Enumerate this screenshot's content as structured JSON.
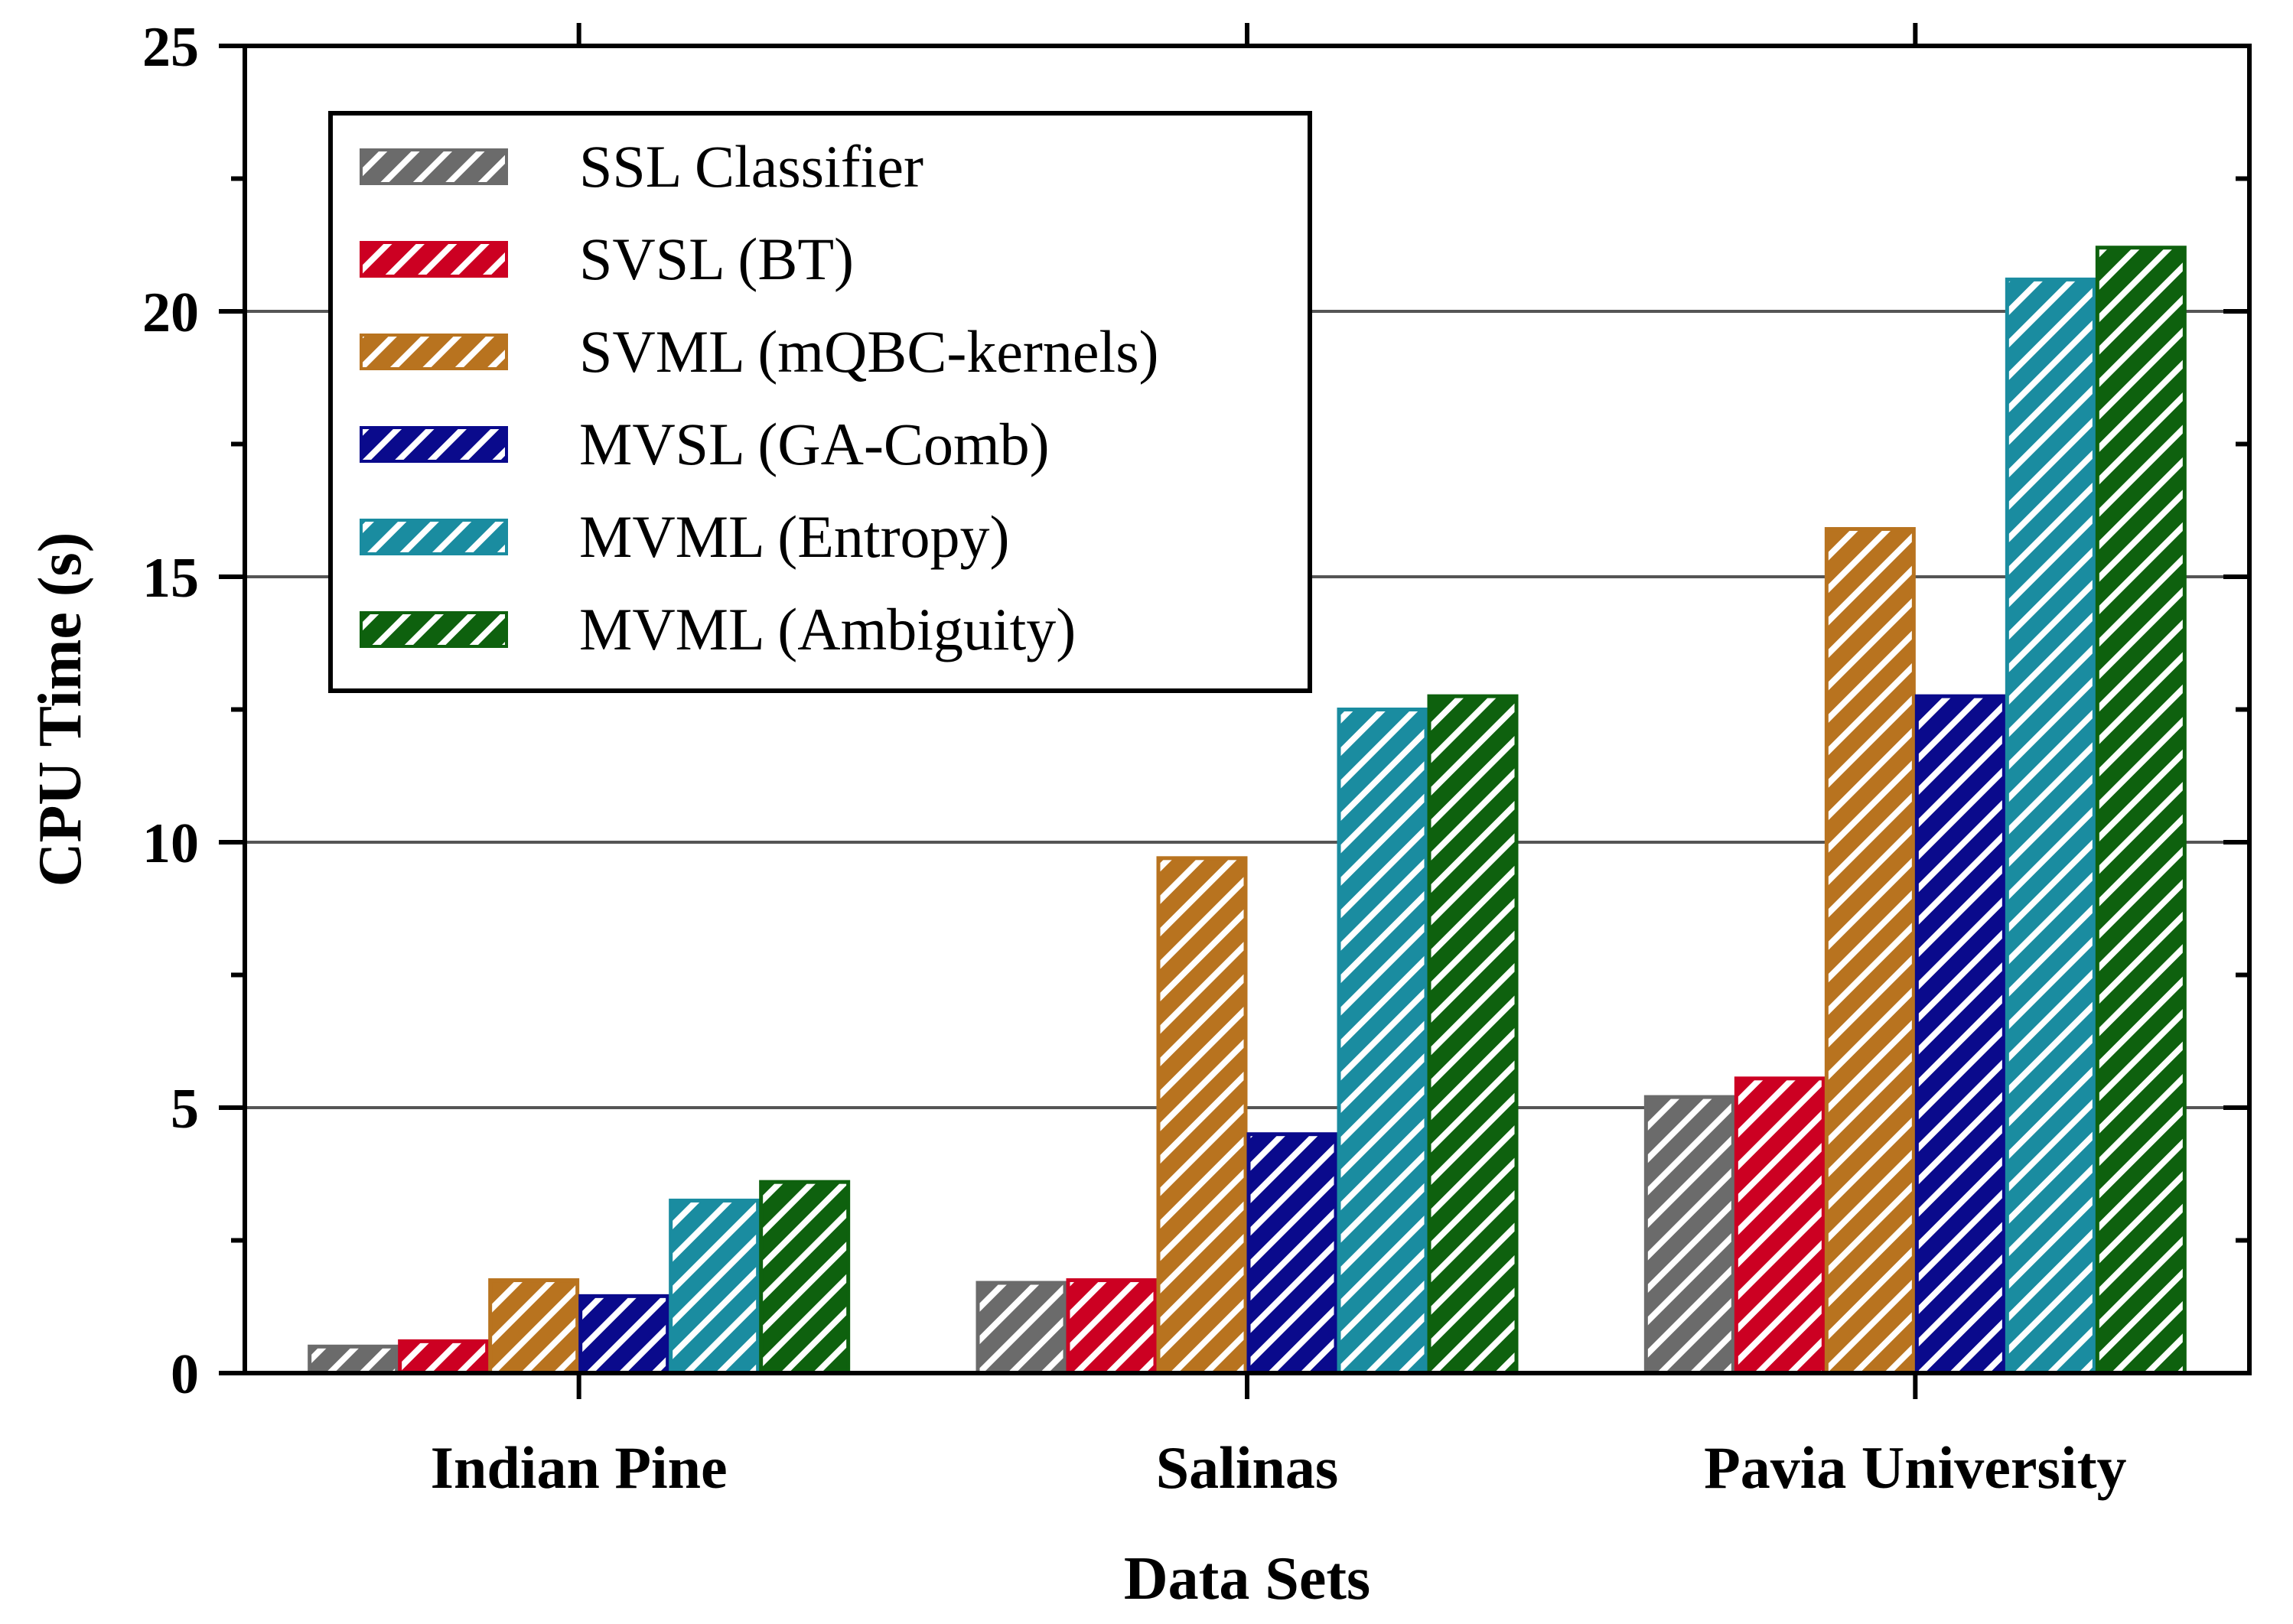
{
  "chart_data": {
    "type": "bar",
    "title": "",
    "xlabel": "Data Sets",
    "ylabel": "CPU Time (s)",
    "ylim": [
      0,
      25
    ],
    "yticks": [
      0,
      5,
      10,
      15,
      20,
      25
    ],
    "ytick_labels": [
      "0",
      "5",
      "10",
      "15",
      "20",
      "25"
    ],
    "grid": true,
    "legend_position": "top-left",
    "categories": [
      "Indian Pine",
      "Salinas",
      "Pavia University"
    ],
    "series": [
      {
        "name": "SSL Classifier",
        "color": "#6b6b6b",
        "values": [
          0.5,
          1.7,
          5.2
        ]
      },
      {
        "name": "SVSL (BT)",
        "color": "#cc0022",
        "values": [
          0.6,
          1.75,
          5.55
        ]
      },
      {
        "name": "SVML (mQBC-kernels)",
        "color": "#b8731f",
        "values": [
          1.75,
          9.7,
          15.9
        ]
      },
      {
        "name": "MVSL (GA-Comb)",
        "color": "#0a0a8c",
        "values": [
          1.45,
          4.5,
          12.75
        ]
      },
      {
        "name": "MVML (Entropy)",
        "color": "#1a8ca0",
        "values": [
          3.25,
          12.5,
          20.6
        ]
      },
      {
        "name": "MVML (Ambiguity)",
        "color": "#0e610e",
        "values": [
          3.6,
          12.75,
          21.2
        ]
      }
    ]
  }
}
